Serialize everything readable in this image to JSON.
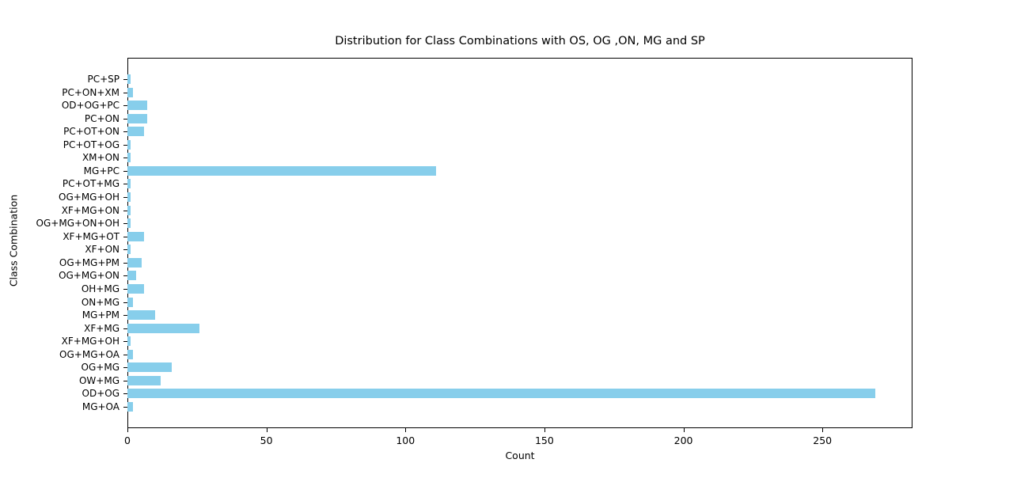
{
  "chart_data": {
    "type": "bar",
    "orientation": "horizontal",
    "title": "Distribution for Class Combinations with OS, OG ,ON, MG and SP",
    "xlabel": "Count",
    "ylabel": "Class Combination",
    "categories": [
      "PC+SP",
      "PC+ON+XM",
      "OD+OG+PC",
      "PC+ON",
      "PC+OT+ON",
      "PC+OT+OG",
      "XM+ON",
      "MG+PC",
      "PC+OT+MG",
      "OG+MG+OH",
      "XF+MG+ON",
      "OG+MG+ON+OH",
      "XF+MG+OT",
      "XF+ON",
      "OG+MG+PM",
      "OG+MG+ON",
      "OH+MG",
      "ON+MG",
      "MG+PM",
      "XF+MG",
      "XF+MG+OH",
      "OG+MG+OA",
      "OG+MG",
      "OW+MG",
      "OD+OG",
      "MG+OA"
    ],
    "values": [
      1,
      2,
      7,
      7,
      6,
      1,
      1,
      111,
      1,
      1,
      1,
      1,
      6,
      1,
      5,
      3,
      6,
      2,
      10,
      26,
      1,
      2,
      16,
      12,
      269,
      2
    ],
    "xticks": [
      0,
      50,
      100,
      150,
      200,
      250
    ],
    "xtick_labels": [
      "0",
      "50",
      "100",
      "150",
      "200",
      "250"
    ],
    "xlim": [
      0,
      282.4
    ],
    "bar_color": "#87CEEB",
    "axis_color": "#000000",
    "grid": false,
    "legend": false
  }
}
